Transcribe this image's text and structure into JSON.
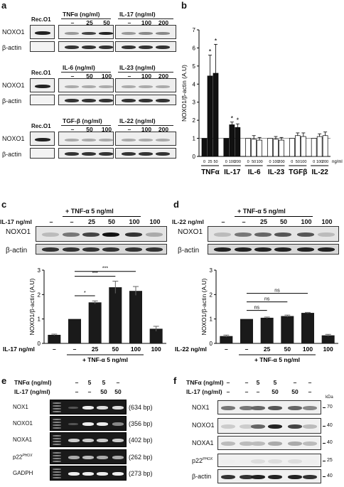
{
  "panel_a": {
    "label": "a",
    "recombinant_label": "Rec.O1",
    "row_labels": [
      "NOXO1",
      "β-actin"
    ],
    "groups": [
      {
        "name": "TNFα (ng/ml)",
        "levels": [
          "–",
          "25",
          "50"
        ]
      },
      {
        "name": "IL-17 (ng/ml)",
        "levels": [
          "–",
          "100",
          "200"
        ]
      },
      {
        "name": "IL-6 (ng/ml)",
        "levels": [
          "–",
          "50",
          "100"
        ]
      },
      {
        "name": "IL-23 (ng/ml)",
        "levels": [
          "–",
          "100",
          "200"
        ]
      },
      {
        "name": "TGF-β (ng/ml)",
        "levels": [
          "–",
          "50",
          "100"
        ]
      },
      {
        "name": "IL-22 (ng/ml)",
        "levels": [
          "–",
          "100",
          "200"
        ]
      }
    ]
  },
  "panel_b": {
    "label": "b",
    "ylabel": "NOXO1/β-actin (A.U)",
    "unit_label": "ng/ml",
    "star": "*",
    "groups": [
      "TNFα",
      "IL-17",
      "IL-6",
      "IL-23",
      "TGFβ",
      "IL-22"
    ],
    "sub_levels": [
      [
        "0",
        "25",
        "50"
      ],
      [
        "0",
        "100",
        "200"
      ],
      [
        "0",
        "50",
        "100"
      ],
      [
        "0",
        "100",
        "200"
      ],
      [
        "0",
        "50",
        "100"
      ],
      [
        "0",
        "100",
        "200"
      ]
    ]
  },
  "panel_c": {
    "label": "c",
    "header": "+ TNF-α  5 ng/ml",
    "dose_label": "IL-17 ng/ml",
    "lanes": [
      "–",
      "–",
      "25",
      "50",
      "100",
      "100"
    ],
    "row_labels": [
      "NOXO1",
      "β-actin"
    ],
    "ylabel": "NOXO1/β-actin (A.U)",
    "sig": [
      "*",
      "***",
      "***"
    ]
  },
  "panel_d": {
    "label": "d",
    "header": "+ TNF-α  5 ng/ml",
    "dose_label": "IL-22 ng/ml",
    "lanes": [
      "–",
      "–",
      "25",
      "50",
      "100",
      "100"
    ],
    "row_labels": [
      "NOXO1",
      "β-actin"
    ],
    "ylabel": "NOXO1/β-actin (A.U)",
    "sig": [
      "ns",
      "ns",
      "ns"
    ]
  },
  "panel_e": {
    "label": "e",
    "tnf_label": "TNFα (ng/ml)",
    "il17_label": "IL-17 (ng/ml)",
    "tnf_levels": [
      "–",
      "5",
      "5",
      "–"
    ],
    "il17_levels": [
      "–",
      "–",
      "50",
      "50"
    ],
    "genes": [
      "NOX1",
      "NOXO1",
      "NOXA1",
      "p22PHOX",
      "GADPH"
    ],
    "sizes": [
      "(634 bp)",
      "(356 bp)",
      "(402 bp)",
      "(262 bp)",
      "(273 bp)"
    ]
  },
  "panel_f": {
    "label": "f",
    "tnf_label": "TNFα (ng/ml)",
    "il17_label": "IL-17 (ng/ml)",
    "tnf_levels": [
      "–",
      "–",
      "5",
      "5",
      "–",
      "–"
    ],
    "il17_levels": [
      "–",
      "–",
      "–",
      "50",
      "50",
      "–"
    ],
    "kda_label": "kDa",
    "rows": [
      "NOX1",
      "NOXO1",
      "NOXA1",
      "p22PHOX",
      "β-actin"
    ],
    "markers": [
      "70",
      "40",
      "40",
      "25",
      "40"
    ]
  },
  "chart_data": [
    {
      "type": "bar",
      "panel": "b",
      "ylabel": "NOXO1/β-actin (A.U)",
      "ylim": [
        0,
        7
      ],
      "yticks": [
        0,
        1,
        2,
        3,
        4,
        5,
        6,
        7
      ],
      "series": [
        {
          "group": "TNFα",
          "x": [
            "0",
            "25",
            "50"
          ],
          "values": [
            1.0,
            4.45,
            4.6
          ],
          "errors": [
            0,
            1.15,
            1.6
          ],
          "fill": "#111111"
        },
        {
          "group": "IL-17",
          "x": [
            "0",
            "100",
            "200"
          ],
          "values": [
            1.0,
            1.75,
            1.6
          ],
          "errors": [
            0,
            0.15,
            0.2
          ],
          "fill": "#111111"
        },
        {
          "group": "IL-6",
          "x": [
            "0",
            "50",
            "100"
          ],
          "values": [
            1.0,
            0.95,
            0.9
          ],
          "errors": [
            0,
            0.2,
            0.15
          ],
          "fill": "#ffffff"
        },
        {
          "group": "IL-23",
          "x": [
            "0",
            "100",
            "200"
          ],
          "values": [
            1.0,
            0.95,
            0.9
          ],
          "errors": [
            0,
            0.15,
            0.15
          ],
          "fill": "#ffffff"
        },
        {
          "group": "TGFβ",
          "x": [
            "0",
            "50",
            "100"
          ],
          "values": [
            1.0,
            1.15,
            1.1
          ],
          "errors": [
            0,
            0.15,
            0.2
          ],
          "fill": "#ffffff"
        },
        {
          "group": "IL-22",
          "x": [
            "0",
            "100",
            "200"
          ],
          "values": [
            1.0,
            1.1,
            1.15
          ],
          "errors": [
            0,
            0.15,
            0.2
          ],
          "fill": "#ffffff"
        }
      ],
      "significant": [
        [
          "TNFα",
          "25"
        ],
        [
          "TNFα",
          "50"
        ],
        [
          "IL-17",
          "100"
        ],
        [
          "IL-17",
          "200"
        ]
      ]
    },
    {
      "type": "bar",
      "panel": "c",
      "ylabel": "NOXO1/β-actin (A.U)",
      "ylim": [
        0,
        3
      ],
      "yticks": [
        0,
        1,
        2,
        3
      ],
      "categories": [
        "–",
        "–",
        "25",
        "50",
        "100",
        "100"
      ],
      "values": [
        0.35,
        1.0,
        1.68,
        2.3,
        2.15,
        0.6
      ],
      "errors": [
        0.03,
        0,
        0.06,
        0.25,
        0.18,
        0.1
      ],
      "comparisons": [
        [
          "–",
          "25",
          "*"
        ],
        [
          "–",
          "50",
          "***"
        ],
        [
          "–",
          "100",
          "***"
        ]
      ]
    },
    {
      "type": "bar",
      "panel": "d",
      "ylabel": "NOXO1/β-actin (A.U)",
      "ylim": [
        0,
        3
      ],
      "yticks": [
        0,
        1,
        2,
        3
      ],
      "categories": [
        "–",
        "–",
        "25",
        "50",
        "100",
        "100"
      ],
      "values": [
        0.3,
        1.0,
        1.05,
        1.12,
        1.25,
        0.33
      ],
      "errors": [
        0.04,
        0,
        0.03,
        0.04,
        0.02,
        0.04
      ],
      "comparisons": [
        [
          "–",
          "25",
          "ns"
        ],
        [
          "–",
          "50",
          "ns"
        ],
        [
          "–",
          "100",
          "ns"
        ]
      ]
    }
  ]
}
